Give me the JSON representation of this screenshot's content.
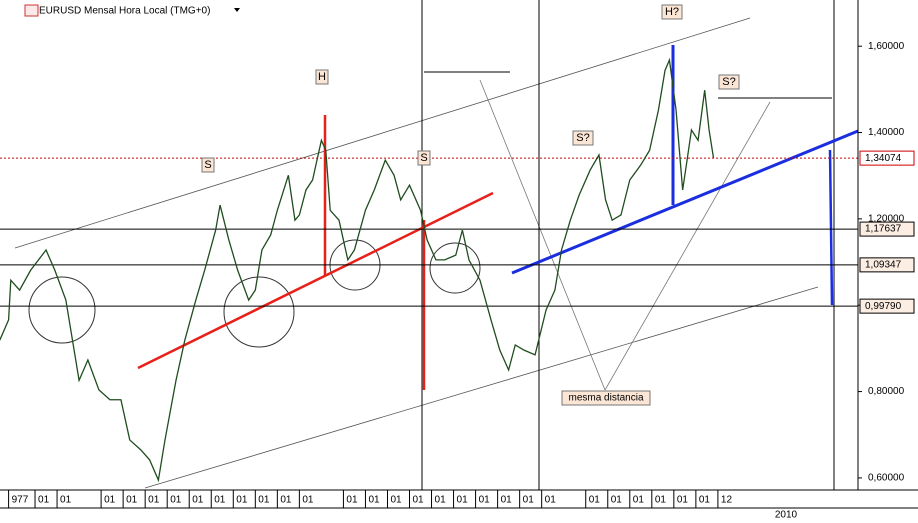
{
  "chart_data": {
    "type": "line",
    "title": "EURUSD Mensal Hora Local (TMG+0)",
    "xlim": [
      1979.41,
      2018.36
    ],
    "ylim": [
      0.572,
      1.707
    ],
    "yticks": [
      {
        "value": 0.6,
        "label": "0,60000"
      },
      {
        "value": 0.8,
        "label": "0,80000"
      },
      {
        "value": 1.0,
        "label": "1,00000"
      },
      {
        "value": 1.2,
        "label": "1,20000"
      },
      {
        "value": 1.4,
        "label": "1,40000"
      },
      {
        "value": 1.6,
        "label": "1,60000"
      }
    ],
    "xticks": [
      {
        "value": 1979.8,
        "label": "977"
      },
      {
        "value": 1981,
        "label": "01"
      },
      {
        "value": 1982,
        "label": "01"
      },
      {
        "value": 1984,
        "label": "01"
      },
      {
        "value": 1985,
        "label": "01"
      },
      {
        "value": 1986,
        "label": "01"
      },
      {
        "value": 1987,
        "label": "01"
      },
      {
        "value": 1988,
        "label": "01"
      },
      {
        "value": 1989,
        "label": "01"
      },
      {
        "value": 1990,
        "label": "01"
      },
      {
        "value": 1991,
        "label": "01"
      },
      {
        "value": 1992,
        "label": "01"
      },
      {
        "value": 1993,
        "label": "01"
      },
      {
        "value": 1995,
        "label": "01"
      },
      {
        "value": 1996,
        "label": "01"
      },
      {
        "value": 1997,
        "label": "01"
      },
      {
        "value": 1998,
        "label": "01"
      },
      {
        "value": 1999,
        "label": "01"
      },
      {
        "value": 2000,
        "label": "01"
      },
      {
        "value": 2001,
        "label": "01"
      },
      {
        "value": 2002,
        "label": "01"
      },
      {
        "value": 2003,
        "label": "01"
      },
      {
        "value": 2004,
        "label": "01"
      },
      {
        "value": 2006,
        "label": "01"
      },
      {
        "value": 2007,
        "label": "01"
      },
      {
        "value": 2008,
        "label": "01"
      },
      {
        "value": 2009,
        "label": "01"
      },
      {
        "value": 2010,
        "label": "01"
      },
      {
        "value": 2011,
        "label": "01"
      },
      {
        "value": 2012,
        "label": "12"
      }
    ],
    "x2label": "2010",
    "series": [
      {
        "name": "EURUSD",
        "color": "#1f4d1f",
        "x": [
          1979.4,
          1979.8,
          1979.9,
          1980.3,
          1980.8,
          1981.5,
          1981.9,
          1982.4,
          1982.7,
          1983.0,
          1983.4,
          1983.9,
          1984.4,
          1984.9,
          1985.3,
          1985.8,
          1986.2,
          1986.6,
          1986.9,
          1987.4,
          1987.8,
          1988.3,
          1988.7,
          1989.2,
          1989.4,
          1989.8,
          1990.2,
          1990.7,
          1991.0,
          1991.3,
          1991.7,
          1992.0,
          1992.5,
          1992.8,
          1993.0,
          1993.3,
          1993.6,
          1993.8,
          1994.0,
          1994.2,
          1994.4,
          1994.8,
          1995.2,
          1995.5,
          1996.0,
          1996.4,
          1996.9,
          1997.3,
          1997.6,
          1998.0,
          1998.5,
          1998.8,
          1999.2,
          1999.6,
          2000.1,
          2000.4,
          2000.7,
          2001.2,
          2001.7,
          2002.1,
          2002.5,
          2002.8,
          2003.2,
          2003.7,
          2004.2,
          2004.6,
          2004.9,
          2005.3,
          2005.7,
          2006.2,
          2006.6,
          2006.9,
          2007.2,
          2007.6,
          2008.0,
          2008.5,
          2008.9,
          2009.3,
          2009.6,
          2009.8,
          2010.1,
          2010.4,
          2010.6,
          2010.8,
          2011.1,
          2011.4,
          2011.6,
          2011.8
        ],
        "values": [
          0.919,
          0.966,
          1.058,
          1.035,
          1.081,
          1.128,
          1.081,
          1.012,
          0.919,
          0.826,
          0.873,
          0.804,
          0.781,
          0.781,
          0.688,
          0.665,
          0.642,
          0.595,
          0.688,
          0.826,
          0.919,
          1.012,
          1.081,
          1.174,
          1.232,
          1.151,
          1.081,
          1.012,
          1.035,
          1.128,
          1.163,
          1.22,
          1.301,
          1.197,
          1.209,
          1.267,
          1.29,
          1.336,
          1.382,
          1.359,
          1.22,
          1.197,
          1.105,
          1.128,
          1.22,
          1.267,
          1.336,
          1.301,
          1.244,
          1.278,
          1.22,
          1.151,
          1.105,
          1.105,
          1.116,
          1.174,
          1.105,
          1.058,
          0.966,
          0.896,
          0.85,
          0.908,
          0.896,
          0.885,
          0.989,
          1.035,
          1.128,
          1.197,
          1.255,
          1.313,
          1.348,
          1.244,
          1.197,
          1.209,
          1.29,
          1.325,
          1.359,
          1.452,
          1.544,
          1.568,
          1.452,
          1.267,
          1.336,
          1.406,
          1.382,
          1.498,
          1.406,
          1.341
        ]
      }
    ],
    "levels": [
      {
        "value": 1.34074,
        "label": "1,34074",
        "color": "#cc0000"
      },
      {
        "value": 1.17637,
        "label": "1,17637",
        "color": "#000000"
      },
      {
        "value": 1.09347,
        "label": "1,09347",
        "color": "#000000"
      },
      {
        "value": 0.9979,
        "label": "0,99790",
        "color": "#000000"
      }
    ],
    "annotations": [
      "H",
      "S",
      "S",
      "H?",
      "S?",
      "S?",
      "mesma distancia"
    ]
  }
}
